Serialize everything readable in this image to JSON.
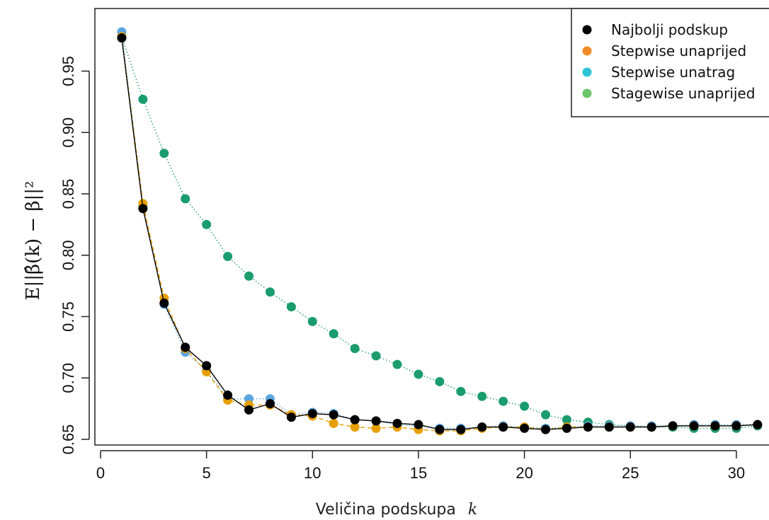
{
  "chart_data": {
    "type": "scatter",
    "title": "",
    "xlabel": "Veličina podskupa",
    "xlabel_symbol": "k",
    "ylabel": "E||β̂(k) − β||²",
    "xlim": [
      0,
      31
    ],
    "ylim": [
      0.65,
      0.985
    ],
    "x_ticks": [
      "0",
      "5",
      "10",
      "15",
      "20",
      "25",
      "30"
    ],
    "y_ticks": [
      "0.65",
      "0.70",
      "0.75",
      "0.80",
      "0.85",
      "0.90",
      "0.95"
    ],
    "grid": false,
    "legend_position": "top-right",
    "series": [
      {
        "name": "Stagewise unaprijed",
        "color": "#1a9c6e",
        "legend_color": "#6cc46b",
        "line": "dotted",
        "x": [
          1,
          2,
          3,
          4,
          5,
          6,
          7,
          8,
          9,
          10,
          11,
          12,
          13,
          14,
          15,
          16,
          17,
          18,
          19,
          20,
          21,
          22,
          23,
          24,
          25,
          26,
          27,
          28,
          29,
          30,
          31
        ],
        "values": [
          0.978,
          0.927,
          0.883,
          0.846,
          0.825,
          0.799,
          0.783,
          0.77,
          0.758,
          0.746,
          0.736,
          0.724,
          0.718,
          0.711,
          0.703,
          0.697,
          0.689,
          0.685,
          0.681,
          0.677,
          0.67,
          0.666,
          0.664,
          0.662,
          0.661,
          0.66,
          0.66,
          0.659,
          0.659,
          0.659,
          0.661
        ]
      },
      {
        "name": "Stepwise unatrag",
        "color": "#5aa6e0",
        "legend_color": "#2ec4d6",
        "line": "dotted",
        "x": [
          1,
          2,
          3,
          4,
          5,
          6,
          7,
          8,
          9,
          10,
          11,
          12,
          13,
          14,
          15,
          16,
          17,
          18,
          19,
          20,
          21,
          22,
          23,
          24,
          25,
          26,
          27,
          28,
          29,
          30,
          31
        ],
        "values": [
          0.982,
          0.84,
          0.76,
          0.721,
          0.706,
          0.683,
          0.683,
          0.683,
          0.67,
          0.672,
          0.671,
          0.666,
          0.665,
          0.662,
          0.661,
          0.659,
          0.659,
          0.66,
          0.661,
          0.66,
          0.659,
          0.66,
          0.661,
          0.661,
          0.661,
          0.661,
          0.661,
          0.662,
          0.662,
          0.662,
          0.662
        ]
      },
      {
        "name": "Stepwise unaprijed",
        "color": "#e69f00",
        "legend_color": "#f28c28",
        "line": "dashed",
        "x": [
          1,
          2,
          3,
          4,
          5,
          6,
          7,
          8,
          9,
          10,
          11,
          12,
          13,
          14,
          15,
          16,
          17,
          18,
          19,
          20,
          21,
          22,
          23,
          24,
          25,
          26,
          27,
          28,
          29,
          30,
          31
        ],
        "values": [
          0.978,
          0.842,
          0.765,
          0.724,
          0.705,
          0.682,
          0.678,
          0.678,
          0.67,
          0.669,
          0.663,
          0.66,
          0.659,
          0.66,
          0.658,
          0.657,
          0.657,
          0.659,
          0.66,
          0.66,
          0.658,
          0.66,
          0.66,
          0.66,
          0.66,
          0.66,
          0.661,
          0.661,
          0.661,
          0.661,
          0.662
        ]
      },
      {
        "name": "Najbolji podskup",
        "color": "#000000",
        "legend_color": "#000000",
        "line": "solid",
        "x": [
          1,
          2,
          3,
          4,
          5,
          6,
          7,
          8,
          9,
          10,
          11,
          12,
          13,
          14,
          15,
          16,
          17,
          18,
          19,
          20,
          21,
          22,
          23,
          24,
          25,
          26,
          27,
          28,
          29,
          30,
          31
        ],
        "values": [
          0.977,
          0.838,
          0.761,
          0.725,
          0.71,
          0.686,
          0.674,
          0.679,
          0.668,
          0.671,
          0.67,
          0.666,
          0.665,
          0.663,
          0.662,
          0.658,
          0.658,
          0.66,
          0.66,
          0.659,
          0.658,
          0.659,
          0.66,
          0.66,
          0.66,
          0.66,
          0.661,
          0.661,
          0.661,
          0.661,
          0.662
        ]
      }
    ],
    "legend": [
      {
        "label": "Najbolji podskup",
        "color": "#000000"
      },
      {
        "label": "Stepwise unaprijed",
        "color": "#f28c28"
      },
      {
        "label": "Stepwise unatrag",
        "color": "#2ec4d6"
      },
      {
        "label": "Stagewise unaprijed",
        "color": "#6cc46b"
      }
    ]
  }
}
